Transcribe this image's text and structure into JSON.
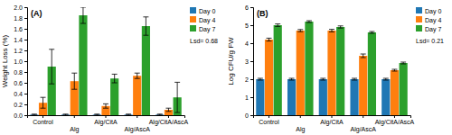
{
  "chart_data": [
    {
      "type": "bar",
      "title": "(A)",
      "ylabel": "Weight Loss (%)",
      "categories": [
        "Control",
        "Alg",
        "Alg/CitA",
        "Alg/AscA",
        "Alg/CitA/AscA"
      ],
      "series": [
        {
          "name": "Day 0",
          "values": [
            0.01,
            0.01,
            0.01,
            0.01,
            0.01
          ],
          "errors": [
            0.01,
            0.01,
            0.01,
            0.01,
            0.01
          ]
        },
        {
          "name": "Day 4",
          "values": [
            0.23,
            0.63,
            0.17,
            0.73,
            0.1
          ],
          "errors": [
            0.1,
            0.15,
            0.04,
            0.05,
            0.03
          ]
        },
        {
          "name": "Day 7",
          "values": [
            0.9,
            1.85,
            0.68,
            1.65,
            0.33
          ],
          "errors": [
            0.32,
            0.15,
            0.08,
            0.17,
            0.28
          ]
        }
      ],
      "ylim": [
        0,
        2.0
      ],
      "yticks": [
        {
          "value": 0.0,
          "label": "0.0"
        },
        0.2,
        0.4,
        0.6,
        0.8,
        {
          "value": 1.0,
          "label": "1.0"
        },
        1.2,
        1.4,
        1.6,
        1.8,
        {
          "value": 2.0,
          "label": "2.0"
        }
      ],
      "annotations": [
        "Lsd= 0.68"
      ],
      "legend": "upper right",
      "grid": false
    },
    {
      "type": "bar",
      "title": "(B)",
      "ylabel": "Log CFU/g FW",
      "categories": [
        "Control",
        "Alg",
        "Alg/CitA",
        "Alg/AscA",
        "Alg/CitA/AscA"
      ],
      "series": [
        {
          "name": "Day 0",
          "values": [
            2.0,
            2.0,
            2.0,
            2.0,
            2.0
          ],
          "errors": [
            0.05,
            0.05,
            0.05,
            0.05,
            0.05
          ]
        },
        {
          "name": "Day 4",
          "values": [
            4.2,
            4.7,
            4.7,
            3.3,
            2.5
          ],
          "errors": [
            0.08,
            0.06,
            0.07,
            0.1,
            0.05
          ]
        },
        {
          "name": "Day 7",
          "values": [
            5.0,
            5.2,
            4.9,
            4.6,
            2.9
          ],
          "errors": [
            0.07,
            0.05,
            0.06,
            0.05,
            0.05
          ]
        }
      ],
      "ylim": [
        0,
        6
      ],
      "yticks": [
        0,
        1,
        2,
        3,
        4,
        5,
        6
      ],
      "annotations": [
        "Lsd= 0.21"
      ],
      "legend": "upper right",
      "grid": false
    }
  ]
}
